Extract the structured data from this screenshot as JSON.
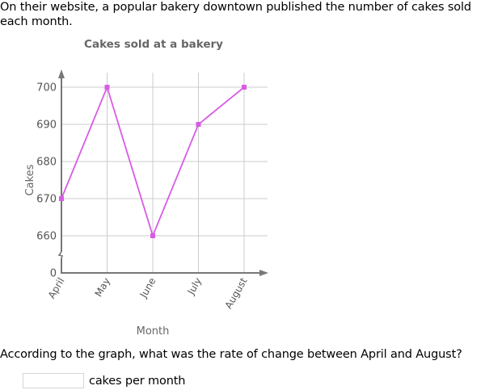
{
  "intro_text": "On their website, a popular bakery downtown published the number of cakes sold each month.",
  "question": {
    "text": "According to the graph, what was the rate of change between April and August?",
    "input_value": "",
    "input_placeholder": "",
    "unit_label": "cakes per month"
  },
  "colors": {
    "line": "#d85be6",
    "grid": "#cccccc",
    "axis": "#777777",
    "label": "#555555",
    "title": "#666666"
  },
  "chart_data": {
    "type": "line",
    "title": "Cakes sold at a bakery",
    "xlabel": "Month",
    "ylabel": "Cakes",
    "categories": [
      "April",
      "May",
      "June",
      "July",
      "August"
    ],
    "values": [
      670,
      700,
      660,
      690,
      700
    ],
    "yticks": [
      0,
      660,
      670,
      680,
      690,
      700
    ],
    "ylim": [
      660,
      700
    ],
    "axis_break": true,
    "grid": true,
    "legend": null
  }
}
